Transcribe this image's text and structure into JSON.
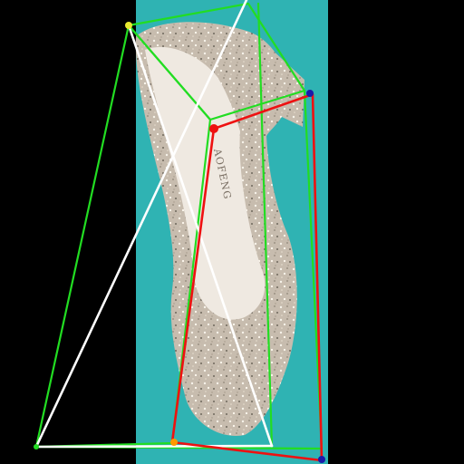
{
  "photo": {
    "subject": "glitter-high-heel-pump",
    "background_color": "#000000",
    "backdrop_color": "#2fb3b3",
    "shoe_color": "#cbbfb0",
    "insole_color": "#efe9e1"
  },
  "insole_print": "AOFENG",
  "overlay": {
    "colors": {
      "green": "#22dd22",
      "white": "#ffffff",
      "red": "#ee1111",
      "yellow": "#e8e830",
      "blue": "#1a1aaa",
      "orange": "#ff9900"
    }
  }
}
